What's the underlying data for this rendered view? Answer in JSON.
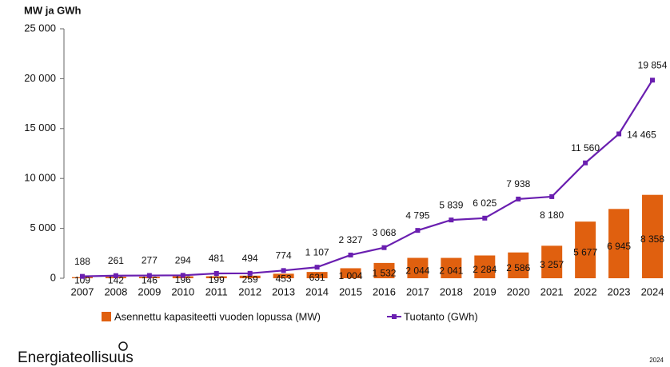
{
  "chart_data": {
    "type": "bar-line",
    "axis_title": "MW ja GWh",
    "categories": [
      "2007",
      "2008",
      "2009",
      "2010",
      "2011",
      "2012",
      "2013",
      "2014",
      "2015",
      "2016",
      "2017",
      "2018",
      "2019",
      "2020",
      "2021",
      "2022",
      "2023",
      "2024"
    ],
    "series": [
      {
        "name": "Asennettu kapasiteetti vuoden lopussa (MW)",
        "type": "bar",
        "color": "#e0600f",
        "values": [
          109,
          142,
          146,
          196,
          199,
          259,
          453,
          631,
          1004,
          1532,
          2044,
          2041,
          2284,
          2586,
          3257,
          5677,
          6945,
          8358
        ],
        "value_labels": [
          "109",
          "142",
          "146",
          "196",
          "199",
          "259",
          "453",
          "631",
          "1 004",
          "1 532",
          "2 044",
          "2 041",
          "2 284",
          "2 586",
          "3 257",
          "5 677",
          "6 945",
          "8 358"
        ]
      },
      {
        "name": "Tuotanto (GWh)",
        "type": "line",
        "color": "#6a1fb0",
        "values": [
          188,
          261,
          277,
          294,
          481,
          494,
          774,
          1107,
          2327,
          3068,
          4795,
          5839,
          6025,
          7938,
          8180,
          11560,
          14465,
          19854
        ],
        "value_labels": [
          "188",
          "261",
          "277",
          "294",
          "481",
          "494",
          "774",
          "1 107",
          "2 327",
          "3 068",
          "4 795",
          "5 839",
          "6 025",
          "7 938",
          "8 180",
          "11 560",
          "14 465",
          "19 854"
        ]
      }
    ],
    "ylim": [
      0,
      25000
    ],
    "yticks": [
      0,
      {
        "value": 5000,
        "label": "5 000"
      },
      {
        "value": 10000,
        "label": "10 000"
      },
      {
        "value": 15000,
        "label": "15 000"
      },
      {
        "value": 20000,
        "label": "20 000"
      },
      {
        "value": 25000,
        "label": "25 000"
      }
    ],
    "grid": false,
    "legend": "bottom"
  },
  "footer": {
    "brand": "Energiateollisuus",
    "year": "2024"
  }
}
